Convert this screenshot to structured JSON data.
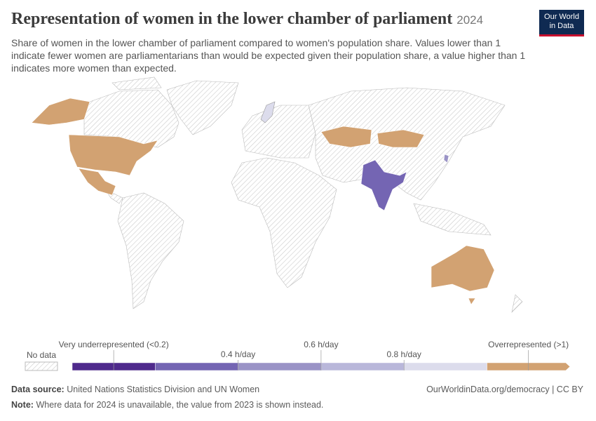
{
  "header": {
    "title": "Representation of women in the lower chamber of parliament",
    "year": "2024",
    "subtitle": "Share of women in the lower chamber of parliament compared to women's population share. Values lower than 1 indicate fewer women are parliamentarians than would be expected given their population share, a value higher than 1 indicates more women than expected.",
    "logo": [
      "Our World",
      "in Data"
    ]
  },
  "legend": {
    "no_data": "No data",
    "bins": [
      {
        "color": "#4f2a8c",
        "label": "Very underrepresented (<0.2)"
      },
      {
        "color": "#7465b3",
        "label": null
      },
      {
        "color": "#9a93c6",
        "label": "0.4 h/day"
      },
      {
        "color": "#b9b7da",
        "label": "0.6 h/day"
      },
      {
        "color": "#dcdcec",
        "label": "0.8 h/day"
      },
      {
        "color": "#d2a272",
        "label": "Overrepresented (>1)"
      }
    ]
  },
  "footer": {
    "source_label": "Data source:",
    "source": "United Nations Statistics Division and UN Women",
    "url": "OurWorldinData.org/democracy | CC BY",
    "note_label": "Note:",
    "note": "Where data for 2024 is unavailable, the value from 2023 is shown instead."
  }
}
